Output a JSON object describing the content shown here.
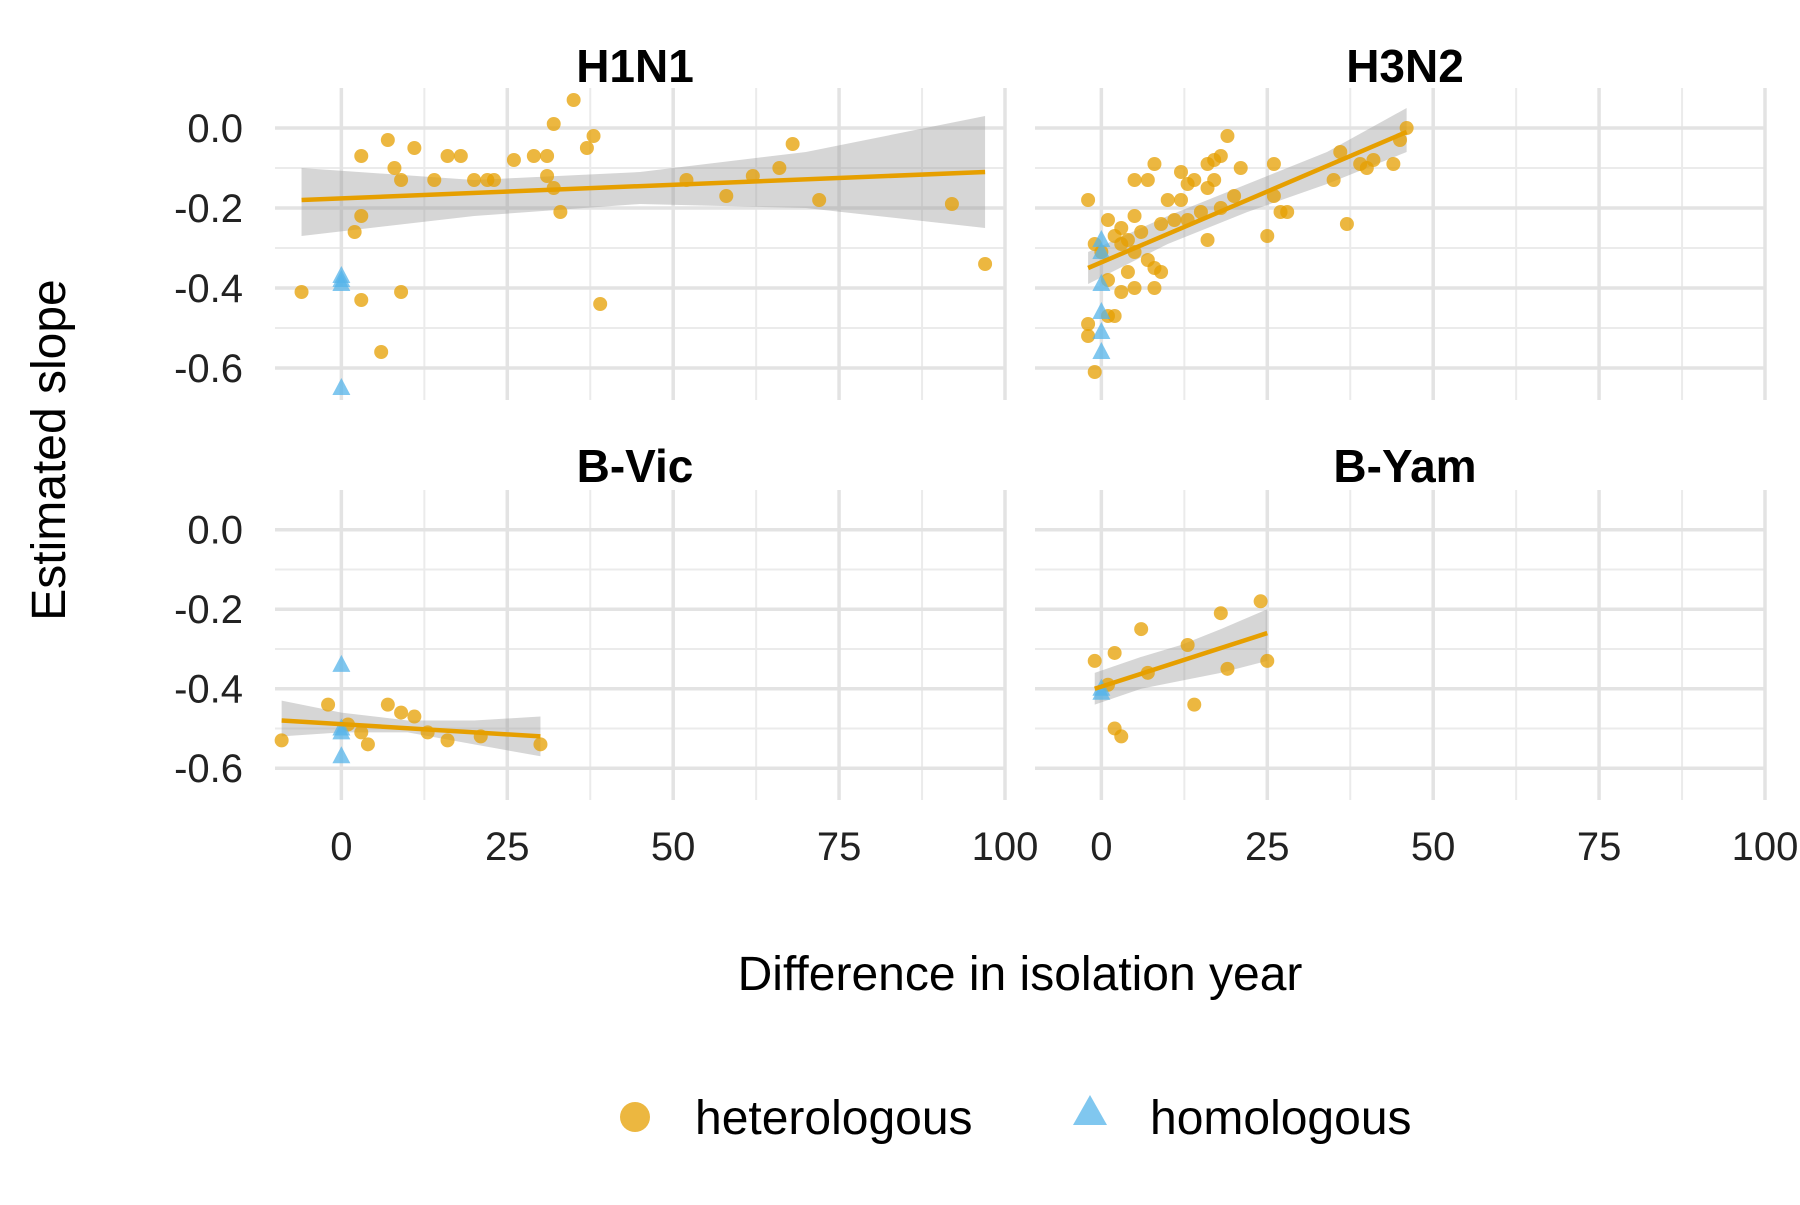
{
  "chart_data": {
    "type": "scatter",
    "facets": [
      "H1N1",
      "H3N2",
      "B-Vic",
      "B-Yam"
    ],
    "xlabel": "Difference in isolation year",
    "ylabel": "Estimated slope",
    "xlim": [
      -10,
      100
    ],
    "ylim": [
      -0.68,
      0.1
    ],
    "x_ticks": [
      0,
      25,
      50,
      75,
      100
    ],
    "y_ticks": [
      0.0,
      -0.2,
      -0.4,
      -0.6
    ],
    "x_tick_labels": [
      "0",
      "25",
      "50",
      "75",
      "100"
    ],
    "y_tick_labels": [
      "0.0",
      "-0.2",
      "-0.4",
      "-0.6"
    ],
    "grid": true,
    "legend_position": "bottom",
    "legend": [
      {
        "label": "heterologous",
        "shape": "circle",
        "color": "#E69F00"
      },
      {
        "label": "homologous",
        "shape": "triangle",
        "color": "#56B4E9"
      }
    ],
    "panels": [
      {
        "title": "H1N1",
        "heterologous": [
          [
            -6,
            -0.41
          ],
          [
            2,
            -0.26
          ],
          [
            3,
            -0.07
          ],
          [
            3,
            -0.43
          ],
          [
            3,
            -0.22
          ],
          [
            6,
            -0.56
          ],
          [
            7,
            -0.03
          ],
          [
            8,
            -0.1
          ],
          [
            9,
            -0.13
          ],
          [
            9,
            -0.41
          ],
          [
            11,
            -0.05
          ],
          [
            14,
            -0.13
          ],
          [
            16,
            -0.07
          ],
          [
            18,
            -0.07
          ],
          [
            20,
            -0.13
          ],
          [
            22,
            -0.13
          ],
          [
            23,
            -0.13
          ],
          [
            26,
            -0.08
          ],
          [
            29,
            -0.07
          ],
          [
            31,
            -0.12
          ],
          [
            31,
            -0.07
          ],
          [
            32,
            0.01
          ],
          [
            32,
            -0.15
          ],
          [
            33,
            -0.21
          ],
          [
            35,
            0.07
          ],
          [
            37,
            -0.05
          ],
          [
            38,
            -0.02
          ],
          [
            39,
            -0.44
          ],
          [
            52,
            -0.13
          ],
          [
            58,
            -0.17
          ],
          [
            62,
            -0.12
          ],
          [
            66,
            -0.1
          ],
          [
            68,
            -0.04
          ],
          [
            72,
            -0.18
          ],
          [
            92,
            -0.19
          ],
          [
            97,
            -0.34
          ]
        ],
        "homologous": [
          [
            0,
            -0.37
          ],
          [
            0,
            -0.38
          ],
          [
            0,
            -0.39
          ],
          [
            0,
            -0.65
          ]
        ],
        "fit": {
          "x": [
            -6,
            97
          ],
          "y": [
            -0.18,
            -0.11
          ]
        },
        "ci": {
          "x": [
            -6,
            20,
            45,
            70,
            97
          ],
          "upper": [
            -0.1,
            -0.13,
            -0.11,
            -0.06,
            0.03
          ],
          "lower": [
            -0.27,
            -0.22,
            -0.19,
            -0.2,
            -0.25
          ]
        }
      },
      {
        "title": "H3N2",
        "heterologous": [
          [
            -2,
            -0.18
          ],
          [
            -2,
            -0.49
          ],
          [
            -2,
            -0.52
          ],
          [
            -1,
            -0.29
          ],
          [
            -1,
            -0.61
          ],
          [
            0,
            -0.31
          ],
          [
            1,
            -0.23
          ],
          [
            1,
            -0.38
          ],
          [
            1,
            -0.47
          ],
          [
            2,
            -0.27
          ],
          [
            2,
            -0.47
          ],
          [
            3,
            -0.29
          ],
          [
            3,
            -0.25
          ],
          [
            3,
            -0.41
          ],
          [
            4,
            -0.28
          ],
          [
            4,
            -0.36
          ],
          [
            5,
            -0.13
          ],
          [
            5,
            -0.22
          ],
          [
            5,
            -0.31
          ],
          [
            5,
            -0.4
          ],
          [
            6,
            -0.26
          ],
          [
            7,
            -0.13
          ],
          [
            7,
            -0.33
          ],
          [
            8,
            -0.09
          ],
          [
            8,
            -0.35
          ],
          [
            8,
            -0.4
          ],
          [
            9,
            -0.24
          ],
          [
            9,
            -0.36
          ],
          [
            10,
            -0.18
          ],
          [
            11,
            -0.23
          ],
          [
            12,
            -0.11
          ],
          [
            12,
            -0.18
          ],
          [
            13,
            -0.14
          ],
          [
            13,
            -0.23
          ],
          [
            14,
            -0.13
          ],
          [
            15,
            -0.21
          ],
          [
            16,
            -0.15
          ],
          [
            16,
            -0.09
          ],
          [
            16,
            -0.28
          ],
          [
            17,
            -0.13
          ],
          [
            17,
            -0.08
          ],
          [
            18,
            -0.07
          ],
          [
            18,
            -0.2
          ],
          [
            19,
            -0.02
          ],
          [
            20,
            -0.17
          ],
          [
            21,
            -0.1
          ],
          [
            25,
            -0.27
          ],
          [
            26,
            -0.17
          ],
          [
            26,
            -0.09
          ],
          [
            27,
            -0.21
          ],
          [
            28,
            -0.21
          ],
          [
            35,
            -0.13
          ],
          [
            36,
            -0.06
          ],
          [
            37,
            -0.24
          ],
          [
            39,
            -0.09
          ],
          [
            40,
            -0.1
          ],
          [
            41,
            -0.08
          ],
          [
            44,
            -0.09
          ],
          [
            45,
            -0.03
          ],
          [
            46,
            0.0
          ]
        ],
        "homologous": [
          [
            0,
            -0.28
          ],
          [
            0,
            -0.31
          ],
          [
            0,
            -0.39
          ],
          [
            0,
            -0.46
          ],
          [
            0,
            -0.51
          ],
          [
            0,
            -0.56
          ]
        ],
        "fit": {
          "x": [
            -2,
            46
          ],
          "y": [
            -0.35,
            -0.01
          ]
        },
        "ci": {
          "x": [
            -2,
            10,
            22,
            34,
            46
          ],
          "upper": [
            -0.31,
            -0.22,
            -0.14,
            -0.06,
            0.05
          ],
          "lower": [
            -0.39,
            -0.29,
            -0.21,
            -0.14,
            -0.06
          ]
        }
      },
      {
        "title": "B-Vic",
        "heterologous": [
          [
            -9,
            -0.53
          ],
          [
            -2,
            -0.44
          ],
          [
            1,
            -0.49
          ],
          [
            3,
            -0.51
          ],
          [
            4,
            -0.54
          ],
          [
            7,
            -0.44
          ],
          [
            9,
            -0.46
          ],
          [
            11,
            -0.47
          ],
          [
            13,
            -0.51
          ],
          [
            16,
            -0.53
          ],
          [
            21,
            -0.52
          ],
          [
            30,
            -0.54
          ]
        ],
        "homologous": [
          [
            0,
            -0.34
          ],
          [
            0,
            -0.5
          ],
          [
            0,
            -0.51
          ],
          [
            0,
            -0.57
          ]
        ],
        "fit": {
          "x": [
            -9,
            30
          ],
          "y": [
            -0.48,
            -0.52
          ]
        },
        "ci": {
          "x": [
            -9,
            0,
            10,
            20,
            30
          ],
          "upper": [
            -0.43,
            -0.46,
            -0.48,
            -0.48,
            -0.47
          ],
          "lower": [
            -0.52,
            -0.51,
            -0.51,
            -0.54,
            -0.57
          ]
        }
      },
      {
        "title": "B-Yam",
        "heterologous": [
          [
            -1,
            -0.33
          ],
          [
            1,
            -0.39
          ],
          [
            2,
            -0.31
          ],
          [
            2,
            -0.5
          ],
          [
            3,
            -0.52
          ],
          [
            6,
            -0.25
          ],
          [
            7,
            -0.36
          ],
          [
            13,
            -0.29
          ],
          [
            14,
            -0.44
          ],
          [
            18,
            -0.21
          ],
          [
            19,
            -0.35
          ],
          [
            24,
            -0.18
          ],
          [
            25,
            -0.33
          ]
        ],
        "homologous": [
          [
            0,
            -0.4
          ],
          [
            0,
            -0.41
          ]
        ],
        "fit": {
          "x": [
            -1,
            25
          ],
          "y": [
            -0.4,
            -0.26
          ]
        },
        "ci": {
          "x": [
            -1,
            6,
            12,
            18,
            25
          ],
          "upper": [
            -0.36,
            -0.32,
            -0.29,
            -0.25,
            -0.2
          ],
          "lower": [
            -0.44,
            -0.4,
            -0.38,
            -0.36,
            -0.33
          ]
        }
      }
    ]
  }
}
